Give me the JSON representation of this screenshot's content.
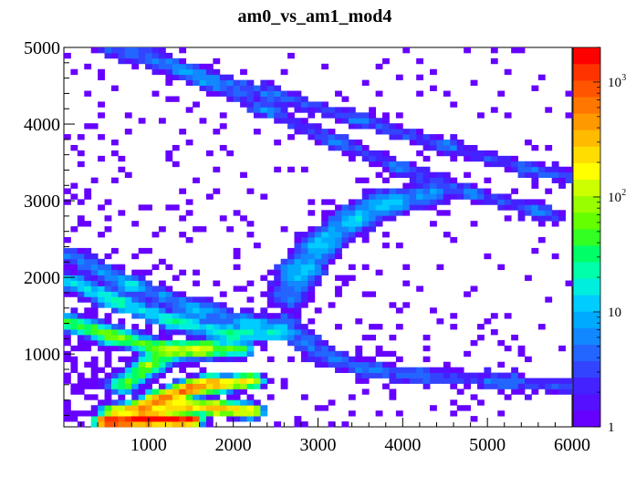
{
  "chart_data": {
    "type": "heatmap",
    "title": "am0_vs_am1_mod4",
    "xlabel": "",
    "ylabel": "",
    "xlim": [
      0,
      6000
    ],
    "ylim": [
      50,
      5000
    ],
    "x_ticks": [
      {
        "value": 1000,
        "label": "1000"
      },
      {
        "value": 2000,
        "label": "2000"
      },
      {
        "value": 3000,
        "label": "3000"
      },
      {
        "value": 4000,
        "label": "4000"
      },
      {
        "value": 5000,
        "label": "5000"
      },
      {
        "value": 6000,
        "label": "6000"
      }
    ],
    "y_ticks": [
      {
        "value": 1000,
        "label": "1000"
      },
      {
        "value": 2000,
        "label": "2000"
      },
      {
        "value": 3000,
        "label": "3000"
      },
      {
        "value": 4000,
        "label": "4000"
      },
      {
        "value": 5000,
        "label": "5000"
      }
    ],
    "colorbar": {
      "scale": "log",
      "zlim": [
        1,
        2000
      ],
      "labels": [
        {
          "value": 1,
          "base": "1",
          "exp": ""
        },
        {
          "value": 10,
          "base": "10",
          "exp": ""
        },
        {
          "value": 100,
          "base": "10",
          "exp": "2"
        },
        {
          "value": 1000,
          "base": "10",
          "exp": "3"
        }
      ],
      "palette": [
        "#6600ff",
        "#5511ff",
        "#4422ff",
        "#3344ff",
        "#2266ff",
        "#1188ff",
        "#00aaff",
        "#00ccff",
        "#00eedd",
        "#00ffaa",
        "#00ff66",
        "#33ff22",
        "#66ff00",
        "#99ff00",
        "#ccff00",
        "#ffff00",
        "#ffdd00",
        "#ffbb00",
        "#ff9900",
        "#ff7700",
        "#ff5500",
        "#ff3300",
        "#ff0000"
      ]
    },
    "bands": [
      {
        "name": "band-upper-1",
        "points": [
          [
            500,
            4990
          ],
          [
            1500,
            4680
          ],
          [
            2500,
            4380
          ],
          [
            3500,
            4050
          ],
          [
            4500,
            3720
          ],
          [
            5500,
            3400
          ],
          [
            6000,
            3330
          ]
        ],
        "weight": 1,
        "width": 60
      },
      {
        "name": "band-upper-2",
        "points": [
          [
            900,
            4960
          ],
          [
            1700,
            4550
          ],
          [
            2400,
            4180
          ],
          [
            3200,
            3780
          ],
          [
            4000,
            3420
          ],
          [
            4800,
            3100
          ],
          [
            5600,
            2870
          ],
          [
            5800,
            2780
          ]
        ],
        "weight": 1,
        "width": 60
      },
      {
        "name": "band-curve-upper",
        "points": [
          [
            2650,
            1750
          ],
          [
            2800,
            2100
          ],
          [
            3050,
            2450
          ],
          [
            3400,
            2750
          ],
          [
            3800,
            2970
          ],
          [
            4300,
            3080
          ]
        ],
        "weight": 2,
        "width": 90
      },
      {
        "name": "band-curve-lower",
        "points": [
          [
            2650,
            1450
          ],
          [
            2850,
            1150
          ],
          [
            3150,
            950
          ],
          [
            3600,
            800
          ],
          [
            4200,
            720
          ],
          [
            5200,
            640
          ],
          [
            6000,
            580
          ]
        ],
        "weight": 1,
        "width": 70
      },
      {
        "name": "band-left-1",
        "points": [
          [
            80,
            2280
          ],
          [
            800,
            1900
          ],
          [
            1600,
            1580
          ],
          [
            2200,
            1400
          ],
          [
            2550,
            1330
          ]
        ],
        "weight": 2,
        "width": 60
      },
      {
        "name": "band-left-2",
        "points": [
          [
            80,
            1950
          ],
          [
            600,
            1700
          ],
          [
            1300,
            1430
          ],
          [
            2000,
            1260
          ],
          [
            2500,
            1280
          ]
        ],
        "weight": 5,
        "width": 55
      },
      {
        "name": "band-cyan-1",
        "points": [
          [
            80,
            1410
          ],
          [
            600,
            1230
          ],
          [
            1100,
            1080
          ],
          [
            1600,
            1060
          ],
          [
            2050,
            1060
          ]
        ],
        "weight": 15,
        "width": 50
      },
      {
        "name": "band-cyan-2",
        "points": [
          [
            700,
            600
          ],
          [
            1000,
            850
          ],
          [
            1300,
            1050
          ],
          [
            1700,
            1080
          ]
        ],
        "weight": 15,
        "width": 50
      },
      {
        "name": "band-hot-1",
        "points": [
          [
            600,
            240
          ],
          [
            900,
            300
          ],
          [
            1200,
            420
          ],
          [
            1500,
            560
          ],
          [
            1700,
            640
          ]
        ],
        "weight": 80,
        "width": 40
      },
      {
        "name": "band-hot-2",
        "points": [
          [
            900,
            250
          ],
          [
            1100,
            420
          ],
          [
            1400,
            520
          ],
          [
            1800,
            600
          ],
          [
            2200,
            650
          ]
        ],
        "weight": 60,
        "width": 40
      },
      {
        "name": "band-hot-3",
        "points": [
          [
            1100,
            250
          ],
          [
            1400,
            320
          ],
          [
            1800,
            300
          ],
          [
            2200,
            260
          ]
        ],
        "weight": 70,
        "width": 40
      },
      {
        "name": "band-hot-4",
        "points": [
          [
            500,
            120
          ],
          [
            1000,
            150
          ],
          [
            1500,
            140
          ]
        ],
        "weight": 600,
        "width": 30
      }
    ]
  }
}
